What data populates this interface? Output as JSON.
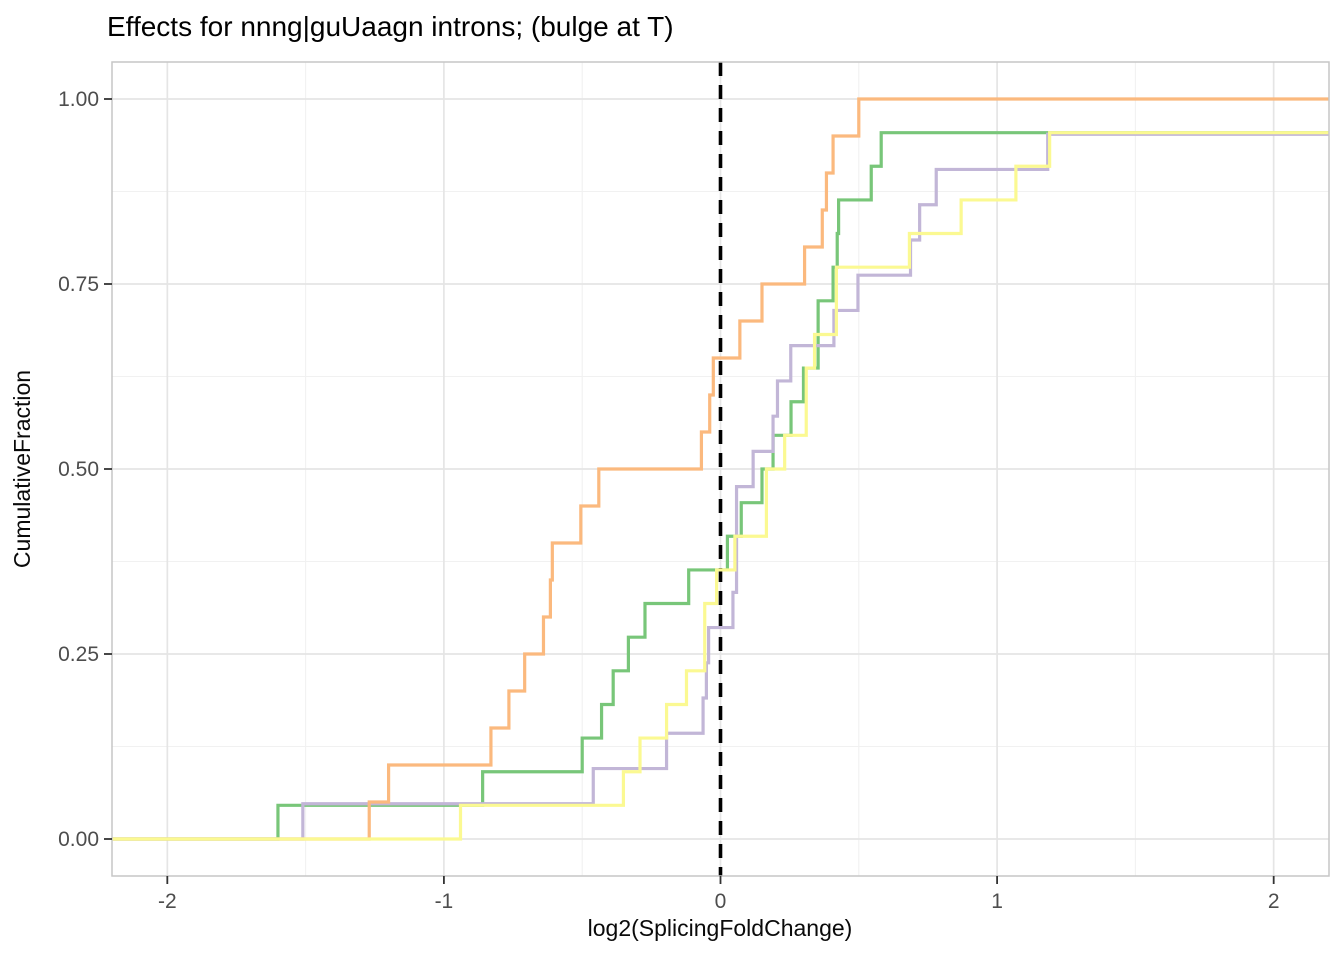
{
  "title": "Effects for nnng|guUaagn introns; (bulge at T)",
  "theme": {
    "background": "#ffffff",
    "panel_background": "#ffffff",
    "panel_border": "#c6c6c6",
    "grid_major": "#e5e5e5",
    "grid_minor": "#f1f1f1",
    "tick_color": "#333333",
    "tick_label_color": "#4d4d4d",
    "title_color": "#000000",
    "reference_line_color": "#000000"
  },
  "chart_data": {
    "type": "line",
    "subtype": "ecdf-step",
    "title": "Effects for nnng|guUaagn introns; (bulge at T)",
    "xlabel": "log2(SplicingFoldChange)",
    "ylabel": "CumulativeFraction",
    "xlim": [
      -2.2,
      2.2
    ],
    "ylim": [
      -0.05,
      1.05
    ],
    "x_ticks": {
      "values": [
        -2,
        -1,
        0,
        1,
        2
      ],
      "labels": [
        "-2",
        "-1",
        "0",
        "1",
        "2"
      ]
    },
    "y_ticks": {
      "values": [
        0,
        0.25,
        0.5,
        0.75,
        1
      ],
      "labels": [
        "0.00",
        "0.25",
        "0.50",
        "0.75",
        "1.00"
      ]
    },
    "x_minor_ticks": [
      -1.5,
      -0.5,
      0.5,
      1.5
    ],
    "y_minor_ticks": [
      0.125,
      0.375,
      0.625,
      0.875
    ],
    "grid": true,
    "legend": "none",
    "reference_line": {
      "x": 0,
      "style": "dashed",
      "color": "#000000"
    },
    "series": [
      {
        "name": "green",
        "color": "#78C679",
        "points": [
          [
            -1.6,
            0.0455
          ],
          [
            -0.86,
            0.0909
          ],
          [
            -0.5,
            0.1364
          ],
          [
            -0.43,
            0.1818
          ],
          [
            -0.388,
            0.2273
          ],
          [
            -0.333,
            0.2727
          ],
          [
            -0.273,
            0.3182
          ],
          [
            -0.115,
            0.3636
          ],
          [
            0.025,
            0.4091
          ],
          [
            0.075,
            0.4545
          ],
          [
            0.15,
            0.5
          ],
          [
            0.19,
            0.5455
          ],
          [
            0.255,
            0.5909
          ],
          [
            0.3,
            0.6364
          ],
          [
            0.353,
            0.7273
          ],
          [
            0.407,
            0.7727
          ],
          [
            0.422,
            0.8182
          ],
          [
            0.427,
            0.8636
          ],
          [
            0.545,
            0.9091
          ],
          [
            0.581,
            0.9545
          ]
        ]
      },
      {
        "name": "purple",
        "color": "#C2B6D7",
        "points": [
          [
            -1.51,
            0.0476
          ],
          [
            -0.46,
            0.0952
          ],
          [
            -0.195,
            0.1429
          ],
          [
            -0.063,
            0.1905
          ],
          [
            -0.051,
            0.2381
          ],
          [
            -0.043,
            0.2857
          ],
          [
            0.045,
            0.3333
          ],
          [
            0.058,
            0.4762
          ],
          [
            0.118,
            0.5238
          ],
          [
            0.19,
            0.5714
          ],
          [
            0.206,
            0.619
          ],
          [
            0.254,
            0.6667
          ],
          [
            0.41,
            0.7143
          ],
          [
            0.497,
            0.7619
          ],
          [
            0.687,
            0.8095
          ],
          [
            0.72,
            0.8571
          ],
          [
            0.78,
            0.9048
          ],
          [
            1.183,
            0.9524
          ]
        ]
      },
      {
        "name": "orange",
        "color": "#FBB97E",
        "points": [
          [
            -1.27,
            0.05
          ],
          [
            -1.2,
            0.1
          ],
          [
            -0.83,
            0.15
          ],
          [
            -0.765,
            0.2
          ],
          [
            -0.708,
            0.25
          ],
          [
            -0.64,
            0.3
          ],
          [
            -0.615,
            0.35
          ],
          [
            -0.608,
            0.4
          ],
          [
            -0.505,
            0.45
          ],
          [
            -0.44,
            0.5
          ],
          [
            -0.069,
            0.55
          ],
          [
            -0.039,
            0.6
          ],
          [
            -0.026,
            0.65
          ],
          [
            0.07,
            0.7
          ],
          [
            0.15,
            0.75
          ],
          [
            0.304,
            0.8
          ],
          [
            0.368,
            0.85
          ],
          [
            0.383,
            0.9
          ],
          [
            0.407,
            0.95
          ],
          [
            0.5,
            1.0
          ]
        ]
      },
      {
        "name": "yellow",
        "color": "#FBF992",
        "points": [
          [
            -0.94,
            0.0455
          ],
          [
            -0.351,
            0.0909
          ],
          [
            -0.291,
            0.1364
          ],
          [
            -0.195,
            0.1818
          ],
          [
            -0.123,
            0.2273
          ],
          [
            -0.057,
            0.3182
          ],
          [
            -0.014,
            0.3636
          ],
          [
            0.052,
            0.4091
          ],
          [
            0.166,
            0.5
          ],
          [
            0.232,
            0.5455
          ],
          [
            0.31,
            0.6364
          ],
          [
            0.34,
            0.6818
          ],
          [
            0.419,
            0.7727
          ],
          [
            0.683,
            0.8182
          ],
          [
            0.87,
            0.8636
          ],
          [
            1.068,
            0.9091
          ],
          [
            1.19,
            0.9545
          ]
        ]
      }
    ]
  }
}
